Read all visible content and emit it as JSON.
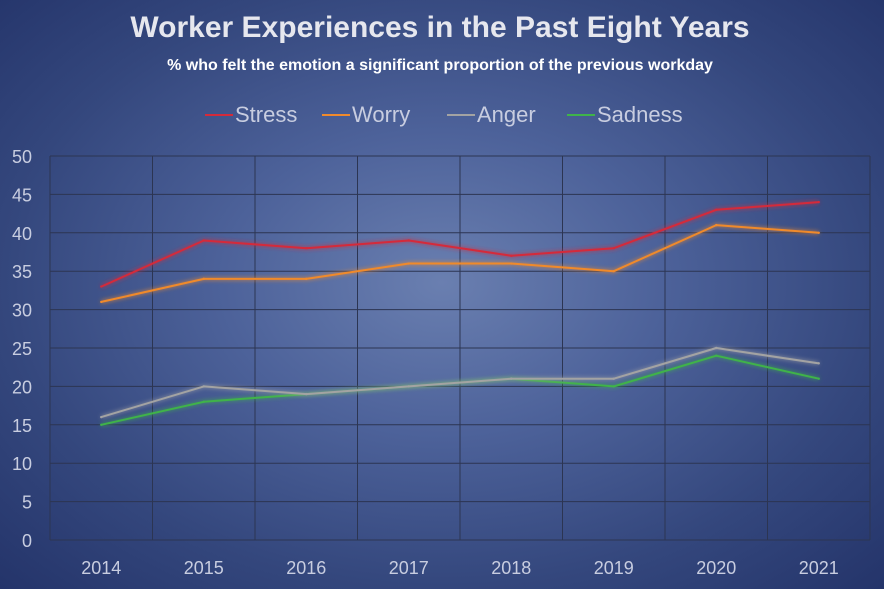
{
  "chart_data": {
    "type": "line",
    "title": "Worker Experiences in the Past Eight Years",
    "subtitle": "% who felt the emotion a significant proportion of the previous workday",
    "categories": [
      "2014",
      "2015",
      "2016",
      "2017",
      "2018",
      "2019",
      "2020",
      "2021"
    ],
    "series": [
      {
        "name": "Stress",
        "color": "#d42a3a",
        "values": [
          33,
          39,
          38,
          39,
          37,
          38,
          43,
          44
        ]
      },
      {
        "name": "Worry",
        "color": "#f08a2c",
        "values": [
          31,
          34,
          34,
          36,
          36,
          35,
          41,
          40
        ]
      },
      {
        "name": "Anger",
        "color": "#a3a3a3",
        "values": [
          16,
          20,
          19,
          20,
          21,
          21,
          25,
          23
        ]
      },
      {
        "name": "Sadness",
        "color": "#3fb34a",
        "values": [
          15,
          18,
          19,
          20,
          21,
          20,
          24,
          21
        ]
      }
    ],
    "ylim": [
      0,
      50
    ],
    "yticks": [
      0,
      5,
      10,
      15,
      20,
      25,
      30,
      35,
      40,
      45,
      50
    ],
    "grid": true,
    "legend": "top",
    "text_color": "#c8cde0",
    "title_color": "#e8e8ee",
    "grid_color": "#2c3552"
  }
}
